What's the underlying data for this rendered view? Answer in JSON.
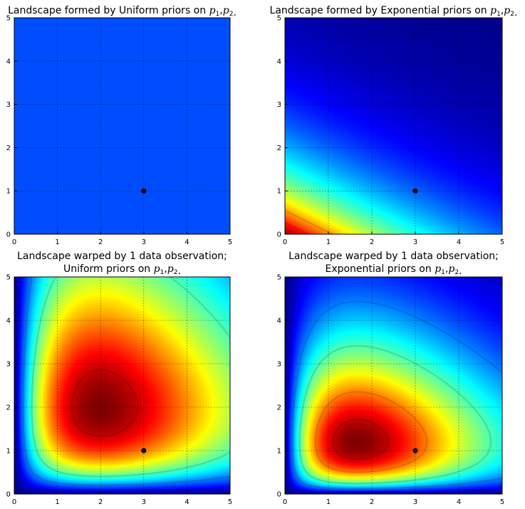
{
  "chart_data": [
    {
      "type": "heatmap",
      "title_lines": [
        {
          "text": "Landscape formed by Uniform priors on ",
          "math": "p1,p2",
          "suffix": "."
        }
      ],
      "xlim": [
        0,
        5
      ],
      "ylim": [
        0,
        5
      ],
      "xticks": [
        "0",
        "1",
        "2",
        "3",
        "4",
        "5"
      ],
      "yticks": [
        "0",
        "1",
        "2",
        "3",
        "4",
        "5"
      ],
      "grid": true,
      "colormap": "jet",
      "surface": {
        "kind": "constant",
        "value": 0.2
      },
      "contour_levels": [],
      "point": {
        "x": 3,
        "y": 1
      }
    },
    {
      "type": "heatmap",
      "title_lines": [
        {
          "text": "Landscape formed by Exponential priors on ",
          "math": "p1,p2",
          "suffix": "."
        }
      ],
      "xlim": [
        0,
        5
      ],
      "ylim": [
        0,
        5
      ],
      "xticks": [
        "0",
        "1",
        "2",
        "3",
        "4",
        "5"
      ],
      "yticks": [
        "0",
        "1",
        "2",
        "3",
        "4",
        "5"
      ],
      "grid": true,
      "colormap": "jet",
      "surface": {
        "kind": "exponential_prior",
        "rate_x": 0.3,
        "rate_y": 0.6
      },
      "contour_levels": [
        0.72,
        0.85
      ],
      "point": {
        "x": 3,
        "y": 1
      }
    },
    {
      "type": "heatmap",
      "title_lines": [
        {
          "text": "Landscape warped by 1 data observation;",
          "math": "",
          "suffix": ""
        },
        {
          "text": "Uniform priors on ",
          "math": "p1,p2",
          "suffix": "."
        }
      ],
      "xlim": [
        0,
        5
      ],
      "ylim": [
        0,
        5
      ],
      "xticks": [
        "0",
        "1",
        "2",
        "3",
        "4",
        "5"
      ],
      "yticks": [
        "0",
        "1",
        "2",
        "3",
        "4",
        "5"
      ],
      "grid": true,
      "colormap": "jet",
      "surface": {
        "kind": "poisson_posterior",
        "obs_x": 2,
        "obs_y": 2,
        "rate_x": 0,
        "rate_y": 0
      },
      "contour_levels": [
        0.08,
        0.25,
        0.45,
        0.93
      ],
      "point": {
        "x": 3,
        "y": 1
      }
    },
    {
      "type": "heatmap",
      "title_lines": [
        {
          "text": "Landscape warped by 1 data observation;",
          "math": "",
          "suffix": ""
        },
        {
          "text": "Exponential priors on ",
          "math": "p1,p2",
          "suffix": "."
        }
      ],
      "xlim": [
        0,
        5
      ],
      "ylim": [
        0,
        5
      ],
      "xticks": [
        "0",
        "1",
        "2",
        "3",
        "4",
        "5"
      ],
      "yticks": [
        "0",
        "1",
        "2",
        "3",
        "4",
        "5"
      ],
      "grid": true,
      "colormap": "jet",
      "surface": {
        "kind": "poisson_posterior",
        "obs_x": 2,
        "obs_y": 2,
        "rate_x": 0.1,
        "rate_y": 0.333
      },
      "contour_levels": [
        0.08,
        0.25,
        0.45,
        0.75,
        0.93
      ],
      "point": {
        "x": 3,
        "y": 1
      }
    }
  ]
}
